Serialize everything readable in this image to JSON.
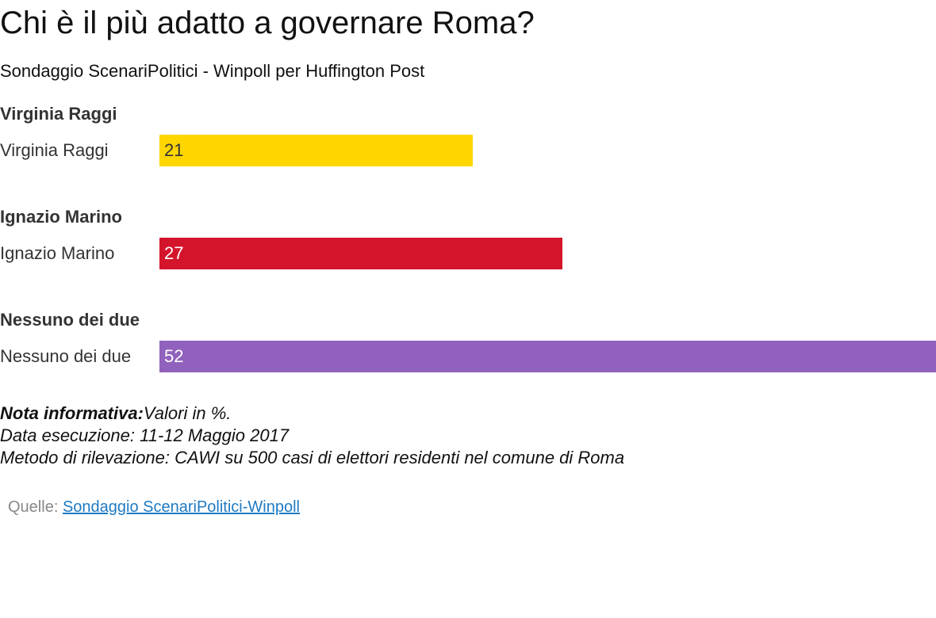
{
  "title": "Chi è il più adatto a governare Roma?",
  "subtitle": "Sondaggio ScenariPolitici - Winpoll per Huffington Post",
  "colors": {
    "raggi": "#ffd600",
    "marino": "#d4142b",
    "nessuno": "#9162bd",
    "source_link": "#1f7ac2",
    "source_label": "#888888"
  },
  "chart_data": {
    "type": "bar",
    "orientation": "horizontal",
    "unit": "%",
    "xlim": [
      0,
      52
    ],
    "groups": [
      {
        "group_title": "Virginia Raggi",
        "label": "Virginia Raggi",
        "value": 21,
        "color": "#ffd600",
        "value_text_color": "#333333"
      },
      {
        "group_title": "Ignazio Marino",
        "label": "Ignazio Marino",
        "value": 27,
        "color": "#d4142b",
        "value_text_color": "#ffffff"
      },
      {
        "group_title": "Nessuno dei due",
        "label": "Nessuno dei due",
        "value": 52,
        "color": "#9162bd",
        "value_text_color": "#ffffff"
      }
    ]
  },
  "notes": {
    "label": "Nota informativa:",
    "text": "Valori in %.",
    "date_line": "Data esecuzione: 11-12 Maggio 2017",
    "method_line": "Metodo di rilevazione: CAWI su 500 casi di elettori residenti nel comune di Roma"
  },
  "source": {
    "label": "Quelle: ",
    "link_text": "Sondaggio ScenariPolitici-Winpoll"
  }
}
